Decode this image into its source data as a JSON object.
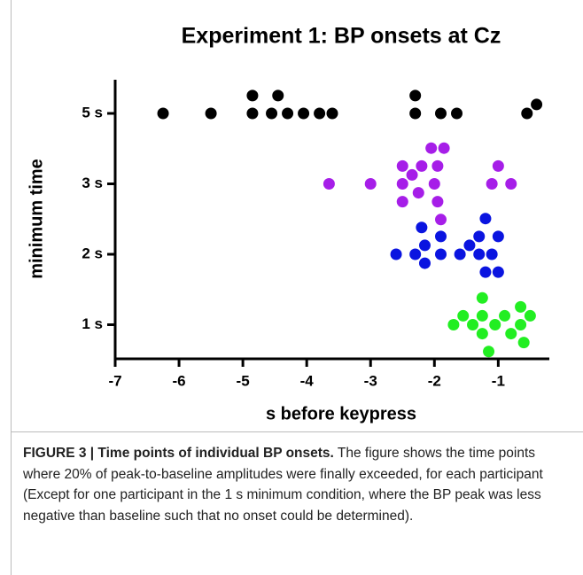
{
  "chart_data": {
    "type": "strip",
    "title": "Experiment 1: BP onsets at Cz",
    "x_label": "s before keypress",
    "y_label": "minimum time",
    "categories": [
      "5 s",
      "3 s",
      "2 s",
      "1 s"
    ],
    "xlim": [
      -7,
      -0.2
    ],
    "xticks": [
      -7,
      -6,
      -5,
      -4,
      -3,
      -2,
      -1
    ],
    "series": [
      {
        "color": "#000000",
        "values": [
          -6.25,
          -5.5,
          -4.85,
          -4.85,
          -4.55,
          -4.45,
          -4.3,
          -4.05,
          -3.8,
          -3.6,
          -2.3,
          -2.3,
          -1.9,
          -1.65,
          -0.55,
          -0.4
        ]
      },
      {
        "color": "#a61ee8",
        "values": [
          -3.65,
          -3.0,
          -2.5,
          -2.5,
          -2.5,
          -2.35,
          -2.25,
          -2.2,
          -2.0,
          -1.95,
          -1.95,
          -2.05,
          -1.85,
          -1.9,
          -1.1,
          -1.0,
          -0.8
        ]
      },
      {
        "color": "#0a14e0",
        "values": [
          -2.6,
          -2.3,
          -2.15,
          -2.15,
          -2.2,
          -1.9,
          -1.9,
          -1.6,
          -1.45,
          -1.3,
          -1.3,
          -1.2,
          -1.2,
          -1.1,
          -1.0,
          -1.0
        ]
      },
      {
        "color": "#22ee22",
        "values": [
          -1.7,
          -1.55,
          -1.4,
          -1.25,
          -1.25,
          -1.25,
          -1.15,
          -1.05,
          -0.9,
          -0.8,
          -0.65,
          -0.65,
          -0.6,
          -0.5
        ]
      }
    ]
  },
  "caption": {
    "label": "FIGURE 3 | Time points of individual BP onsets.",
    "text": "The figure shows the time points where 20% of peak-to-baseline amplitudes were finally exceeded, for each participant (Except for one participant in the 1 s minimum condition, where the BP peak was less negative than baseline such that no onset could be determined)."
  }
}
